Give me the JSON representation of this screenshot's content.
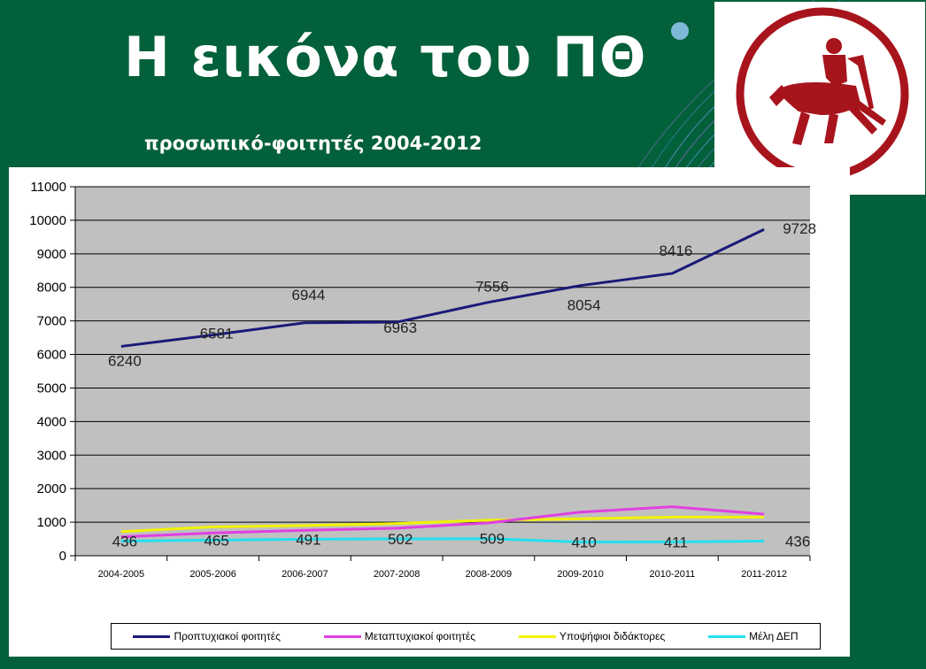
{
  "slide": {
    "title": "Η εικόνα του ΠΘ",
    "subtitle": "προσωπικό-φοιτητές 2004-2012"
  },
  "chart_data": {
    "type": "line",
    "categories": [
      "2004-2005",
      "2005-2006",
      "2006-2007",
      "2007-2008",
      "2008-2009",
      "2009-2010",
      "2010-2011",
      "2011-2012"
    ],
    "ylim": [
      0,
      11000
    ],
    "yticks": [
      0,
      1000,
      2000,
      3000,
      4000,
      5000,
      6000,
      7000,
      8000,
      9000,
      10000,
      11000
    ],
    "grid": true,
    "legend_position": "bottom",
    "series": [
      {
        "name": "Προπτυχιακοί φοιτητές",
        "color": "#1a1a7a",
        "values": [
          6240,
          6581,
          6944,
          6963,
          7556,
          8054,
          8416,
          9728
        ],
        "labels": [
          "6240",
          "6581",
          "6944",
          "6963",
          "7556",
          "8054",
          "8416",
          "9728"
        ]
      },
      {
        "name": "Μεταπτυχιακοί φοιτητές",
        "color": "#e040e0",
        "values": [
          560,
          680,
          760,
          820,
          980,
          1300,
          1460,
          1240
        ]
      },
      {
        "name": "Υποψήφιοι διδάκτορες",
        "color": "#f2f200",
        "values": [
          720,
          860,
          900,
          960,
          1060,
          1100,
          1150,
          1150
        ]
      },
      {
        "name": "Μέλη ΔΕΠ",
        "color": "#22e0f0",
        "values": [
          436,
          465,
          491,
          502,
          509,
          410,
          411,
          436
        ],
        "labels": [
          "436",
          "465",
          "491",
          "502",
          "509",
          "410",
          "411",
          "436"
        ]
      }
    ]
  }
}
